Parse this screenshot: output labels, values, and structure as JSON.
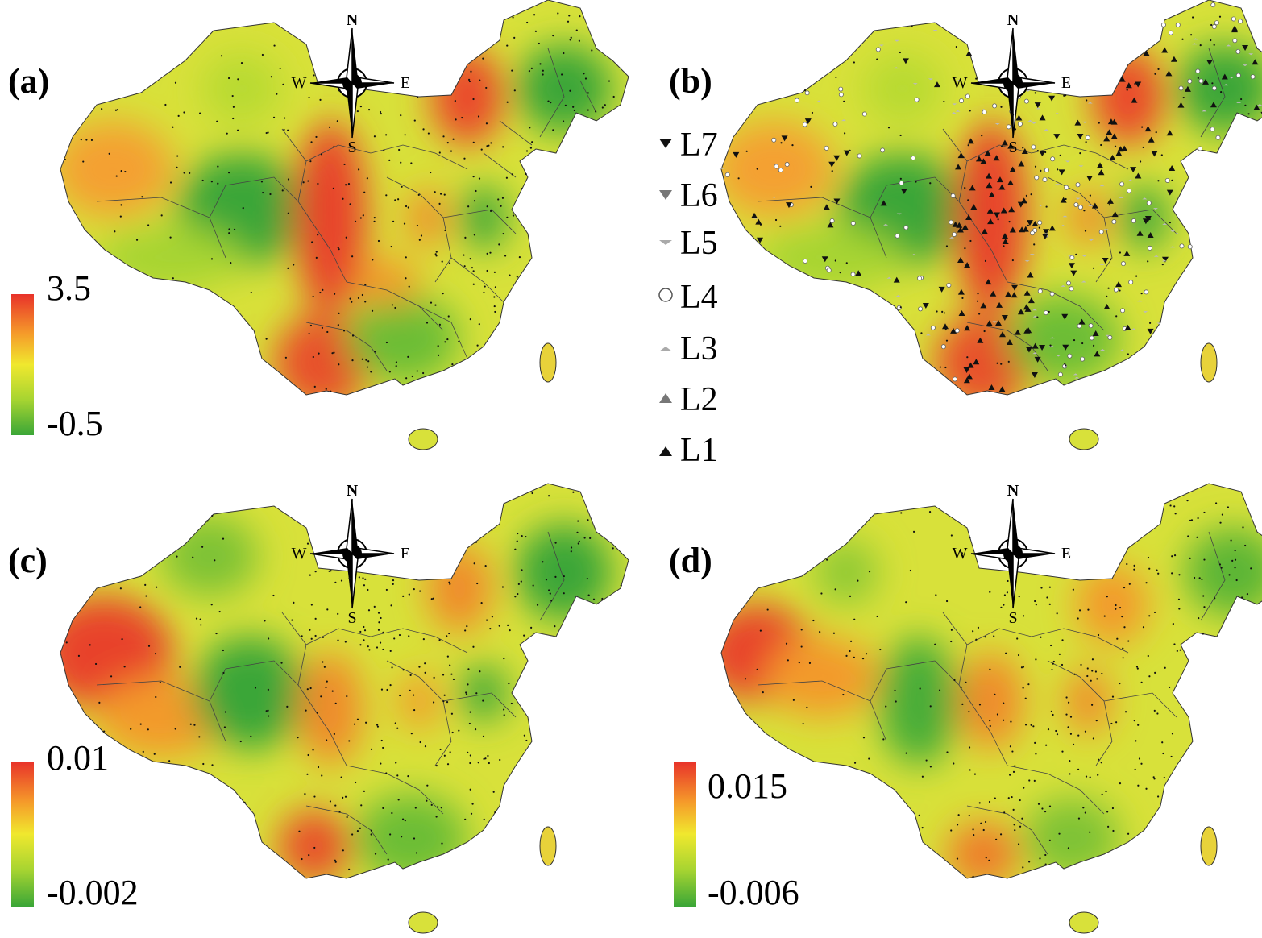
{
  "panels": [
    {
      "label": "(a)",
      "scale_max": "3.5",
      "scale_min": "-0.5"
    },
    {
      "label": "(b)"
    },
    {
      "label": "(c)",
      "scale_max": "0.01",
      "scale_min": "-0.002"
    },
    {
      "label": "(d)",
      "scale_max": "0.015",
      "scale_min": "-0.006"
    }
  ],
  "compass": {
    "n": "N",
    "s": "S",
    "e": "E",
    "w": "W"
  },
  "legend": [
    {
      "label": "L7",
      "symbol": "triangle-down-filled"
    },
    {
      "label": "L6",
      "symbol": "triangle-down-gray"
    },
    {
      "label": "L5",
      "symbol": "dash-down"
    },
    {
      "label": "L4",
      "symbol": "circle-open"
    },
    {
      "label": "L3",
      "symbol": "dash-up"
    },
    {
      "label": "L2",
      "symbol": "triangle-up-gray"
    },
    {
      "label": "L1",
      "symbol": "triangle-up-filled"
    }
  ],
  "colors": {
    "high": "#e8322a",
    "mid": "#f0e82e",
    "low": "#3aa637"
  }
}
